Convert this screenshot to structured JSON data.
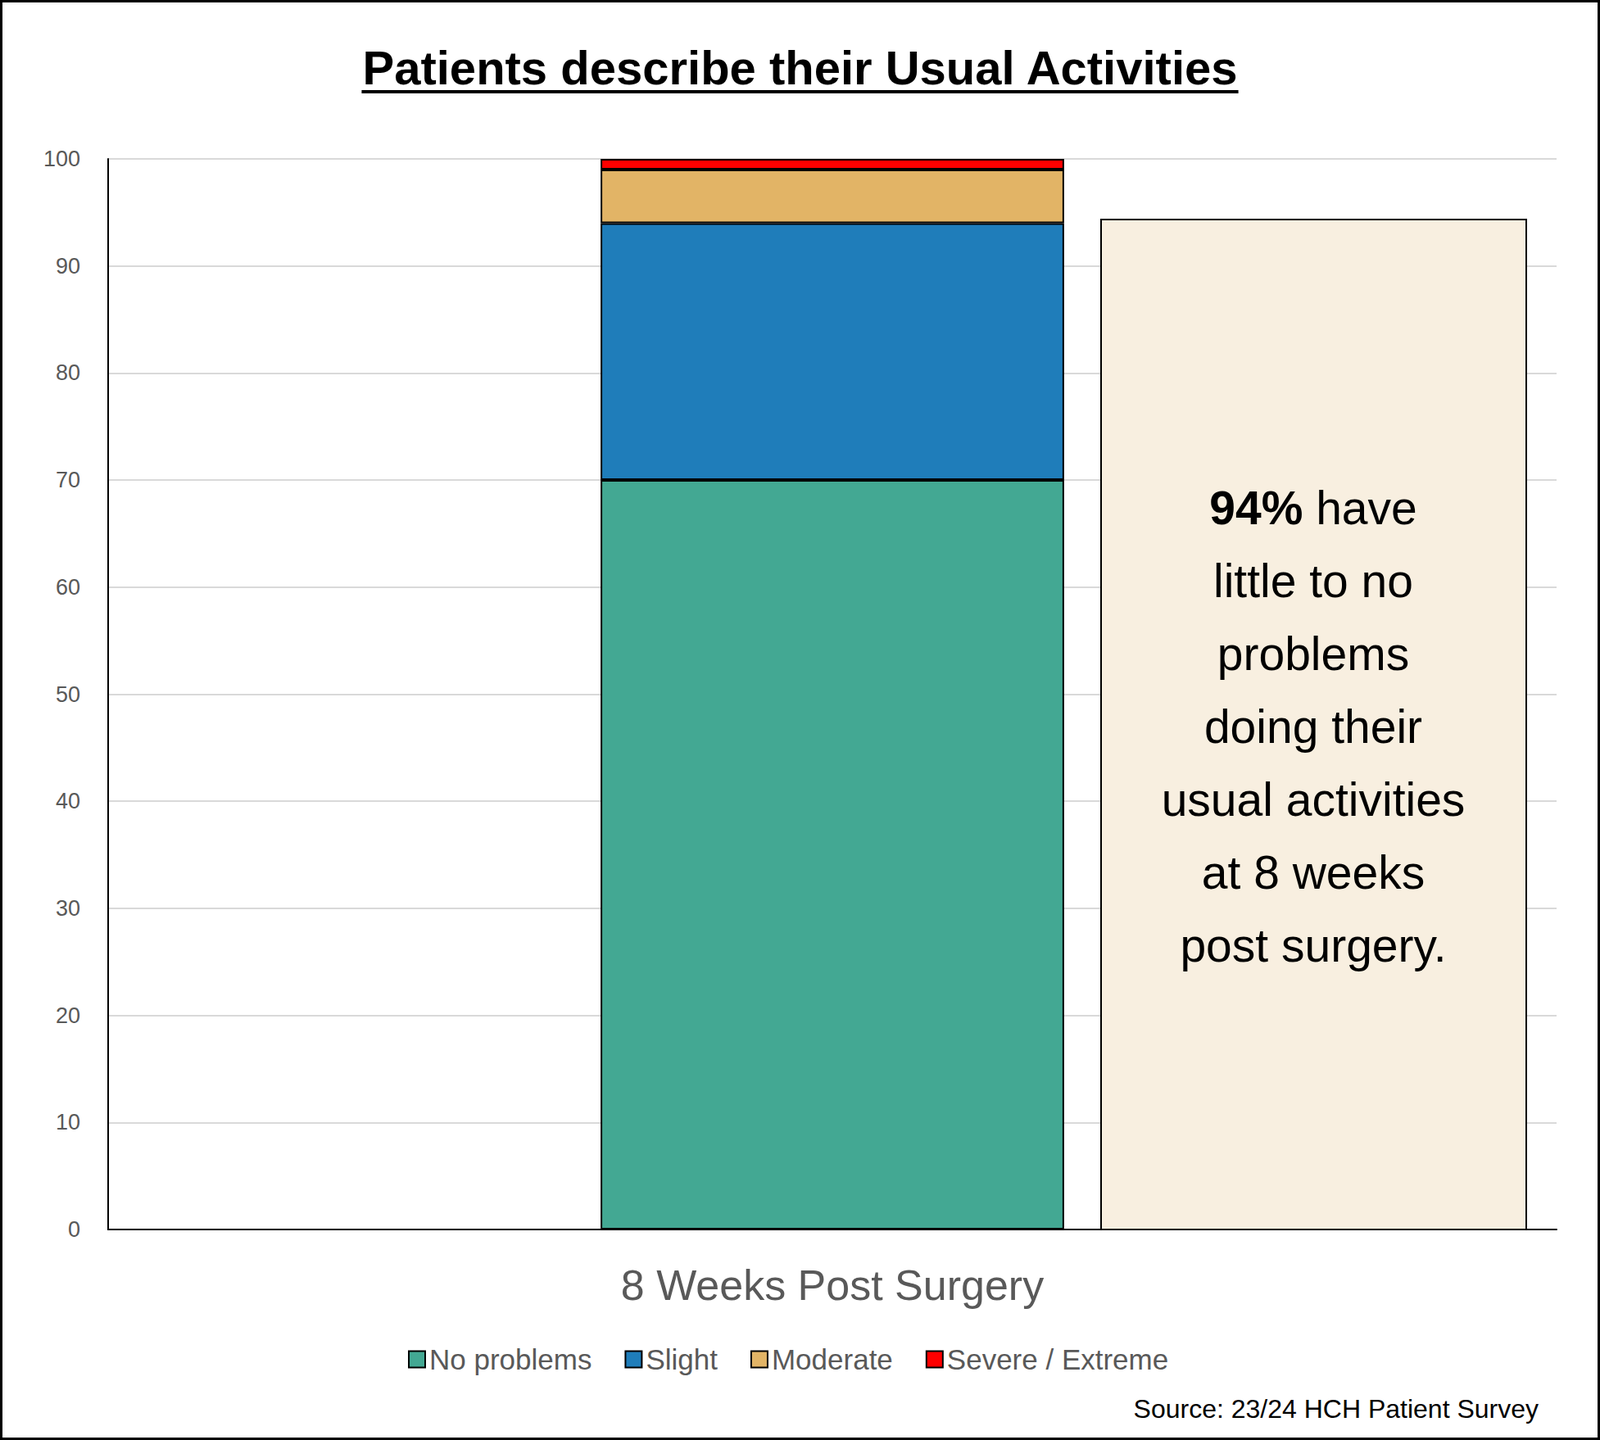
{
  "chart_data": {
    "type": "bar",
    "stacked": true,
    "title": "Patients describe their Usual Activities",
    "categories": [
      "8 Weeks Post Surgery"
    ],
    "series": [
      {
        "name": "No problems",
        "color": "#43a893",
        "values": [
          70
        ]
      },
      {
        "name": "Slight",
        "color": "#1f7dba",
        "values": [
          24
        ]
      },
      {
        "name": "Moderate",
        "color": "#e2b466",
        "values": [
          5
        ]
      },
      {
        "name": "Severe / Extreme",
        "color": "#ff0000",
        "values": [
          1
        ]
      }
    ],
    "ylim": [
      0,
      100
    ],
    "yticks": [
      0,
      10,
      20,
      30,
      40,
      50,
      60,
      70,
      80,
      90,
      100
    ],
    "grid": true,
    "legend": "bottom",
    "annotation": [
      "94% have",
      "little to no",
      "problems",
      "doing their",
      "usual activities",
      "at 8 weeks",
      "post surgery."
    ],
    "source": "Source: 23/24 HCH Patient Survey"
  }
}
